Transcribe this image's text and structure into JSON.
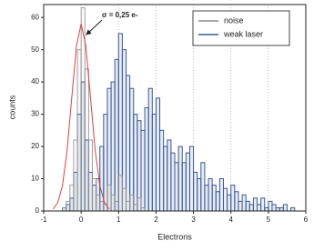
{
  "chart_data": {
    "type": "histogram",
    "xlabel": "Electrons",
    "ylabel": "counts",
    "annotation": "σ = 0,25 e-",
    "xlim": [
      -1,
      6
    ],
    "xticks": [
      -1,
      0,
      1,
      2,
      3,
      4,
      5,
      6
    ],
    "ylim": [
      0,
      64
    ],
    "yticks": [
      0,
      10,
      20,
      30,
      40,
      50,
      60
    ],
    "grid": true,
    "legend": "upper right",
    "bins": [
      -0.6,
      -0.5,
      -0.4,
      -0.3,
      -0.2,
      -0.1,
      0,
      0.1,
      0.2,
      0.3,
      0.4,
      0.5,
      0.6,
      0.7,
      0.8,
      0.9,
      1,
      1.1,
      1.2,
      1.3,
      1.4,
      1.5,
      1.6,
      1.7,
      1.8,
      1.9,
      2,
      2.1,
      2.2,
      2.3,
      2.4,
      2.5,
      2.6,
      2.7,
      2.8,
      2.9,
      3,
      3.1,
      3.2,
      3.3,
      3.4,
      3.5,
      3.6,
      3.7,
      3.8,
      3.9,
      4,
      4.1,
      4.2,
      4.3,
      4.4,
      4.5,
      4.6,
      4.7,
      4.8,
      4.9,
      5,
      5.1,
      5.2,
      5.3,
      5.4,
      5.5,
      5.6,
      5.7,
      5.8
    ],
    "series": [
      {
        "name": "weak laser",
        "color": "#3a5a9a",
        "values": [
          0,
          1,
          2,
          4,
          12,
          30,
          40,
          22,
          12,
          8,
          10,
          20,
          30,
          38,
          40,
          47,
          55,
          50,
          42,
          38,
          30,
          28,
          25,
          32,
          38,
          30,
          35,
          25,
          20,
          22,
          18,
          15,
          20,
          15,
          18,
          20,
          12,
          10,
          15,
          8,
          10,
          8,
          6,
          10,
          7,
          5,
          8,
          6,
          3,
          5,
          3,
          2,
          4,
          2,
          4,
          1,
          3,
          2,
          1,
          1,
          2,
          0,
          1,
          0
        ]
      },
      {
        "name": "noise",
        "color": "#8c8c8c",
        "values": [
          0,
          1,
          3,
          8,
          22,
          50,
          63,
          44,
          22,
          10,
          5,
          3,
          2,
          8,
          5,
          3,
          11,
          7,
          3,
          5,
          2,
          4,
          1,
          0,
          0,
          0,
          0,
          0,
          0,
          0,
          0,
          0,
          0,
          0,
          0,
          0,
          0,
          0,
          0,
          0,
          0,
          0,
          0,
          0,
          0,
          0,
          0,
          0,
          0,
          0,
          0,
          0,
          0,
          0,
          0,
          0,
          0,
          0,
          0,
          0,
          0,
          0,
          0,
          0
        ]
      }
    ],
    "fit": {
      "color": "#e04040",
      "x": [
        -0.75,
        -0.625,
        -0.5,
        -0.375,
        -0.25,
        -0.125,
        0,
        0.125,
        0.25,
        0.375,
        0.5,
        0.625,
        0.75
      ],
      "values": [
        0.6,
        2.6,
        7.8,
        18.8,
        35.2,
        51.2,
        58,
        51.2,
        35.2,
        18.8,
        7.8,
        2.6,
        0.6
      ]
    }
  }
}
